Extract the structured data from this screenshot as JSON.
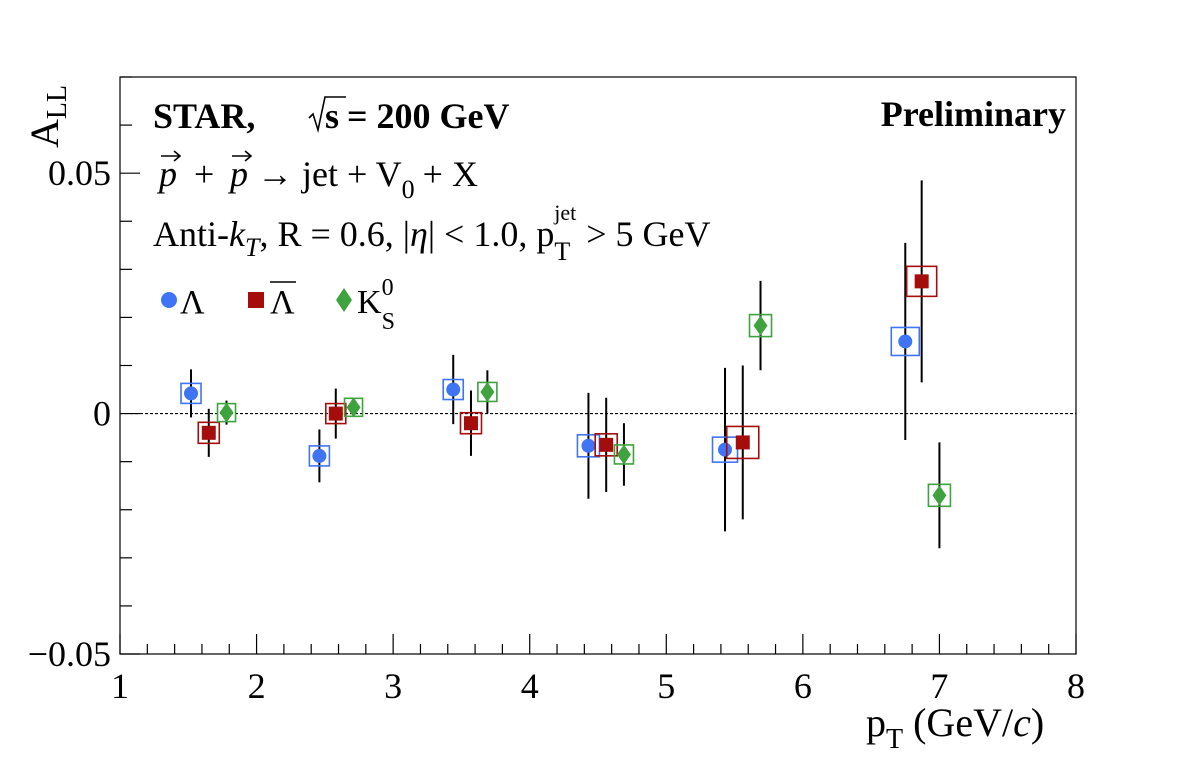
{
  "chart_data": {
    "type": "scatter",
    "experiment": "STAR,",
    "energy": "= 200 GeV",
    "status": "Preliminary",
    "reaction": {
      "p": "p",
      "plus": "+",
      "arrow": "→ jet + V",
      "sub": "0",
      "rest": "+ X"
    },
    "cuts": {
      "a": "Anti-",
      "k": "k",
      "kt": "T",
      "b": ", R = 0.6, |",
      "eta": "η",
      "c": "| < 1.0, p",
      "sub": "T",
      "sup": "jet",
      "d": "> 5 GeV"
    },
    "ylabel": {
      "main": "A",
      "sub": "LL"
    },
    "xlabel": {
      "main": "p",
      "sub": "T",
      "unit_a": "(GeV/",
      "unit_c": "c",
      "unit_b": ")"
    },
    "xlim": [
      1,
      8
    ],
    "ylim": [
      -0.05,
      0.07
    ],
    "xticks": [
      "1",
      "2",
      "3",
      "4",
      "5",
      "6",
      "7",
      "8"
    ],
    "yticks": [
      "−0.05",
      "0",
      "0.05"
    ],
    "xtick_values": [
      1,
      2,
      3,
      4,
      5,
      6,
      7,
      8
    ],
    "ytick_values": [
      -0.05,
      0,
      0.05
    ],
    "series": [
      {
        "name": "Λ",
        "color": "#3f75f5",
        "marker": "circle",
        "x": [
          1.52,
          2.46,
          3.44,
          4.43,
          5.43,
          6.75
        ],
        "y": [
          0.0042,
          -0.0088,
          0.005,
          -0.0067,
          -0.0075,
          0.015
        ],
        "err": [
          0.005,
          0.0055,
          0.0072,
          0.011,
          0.017,
          0.0205
        ],
        "sys": [
          0.001,
          0.001,
          0.001,
          0.0012,
          0.0015,
          0.0018
        ]
      },
      {
        "name": "Λ̄",
        "name_base": "Λ",
        "color": "#a50d0d",
        "marker": "square",
        "x": [
          1.65,
          2.58,
          3.57,
          4.56,
          5.56,
          6.87
        ],
        "y": [
          -0.004,
          0.0,
          -0.002,
          -0.0065,
          -0.006,
          0.0275
        ],
        "err": [
          0.005,
          0.0052,
          0.0068,
          0.0098,
          0.016,
          0.021
        ],
        "sys": [
          0.0011,
          0.001,
          0.0011,
          0.0012,
          0.0022,
          0.002
        ]
      },
      {
        "name": "K⁰S",
        "name_base": "K",
        "name_sup": "0",
        "name_sub": "S",
        "color": "#3ea33e",
        "marker": "diamond",
        "x": [
          1.78,
          2.71,
          3.69,
          4.69,
          5.69,
          7.0
        ],
        "y": [
          0.0002,
          0.0013,
          0.0045,
          -0.0085,
          0.0183,
          -0.017
        ],
        "err": [
          0.0025,
          0.002,
          0.0045,
          0.0065,
          0.0093,
          0.011
        ],
        "sys": [
          0.0008,
          0.0008,
          0.0009,
          0.0009,
          0.0012,
          0.0012
        ]
      }
    ],
    "reference_line": {
      "y": 0,
      "style": "dotted"
    },
    "grid": false
  }
}
